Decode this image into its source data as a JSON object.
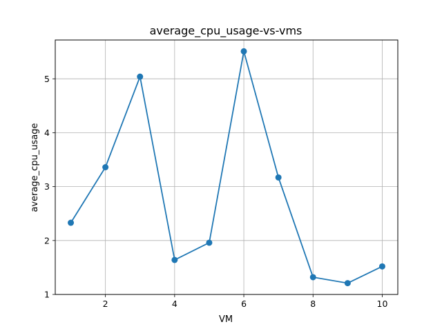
{
  "chart_data": {
    "type": "line",
    "title": "average_cpu_usage-vs-vms",
    "xlabel": "VM",
    "ylabel": "average_cpu_usage",
    "xlim": [
      0.55,
      10.45
    ],
    "ylim": [
      1.0,
      5.72
    ],
    "xticks": [
      2,
      4,
      6,
      8,
      10
    ],
    "yticks": [
      1,
      2,
      3,
      4,
      5
    ],
    "grid": true,
    "series": [
      {
        "x": [
          1,
          2,
          3,
          4,
          5,
          6,
          7,
          8,
          9,
          10
        ],
        "y": [
          2.33,
          3.36,
          5.04,
          1.64,
          1.96,
          5.51,
          3.17,
          1.32,
          1.21,
          1.52
        ],
        "color": "#1f77b4",
        "marker": "circle"
      }
    ]
  }
}
